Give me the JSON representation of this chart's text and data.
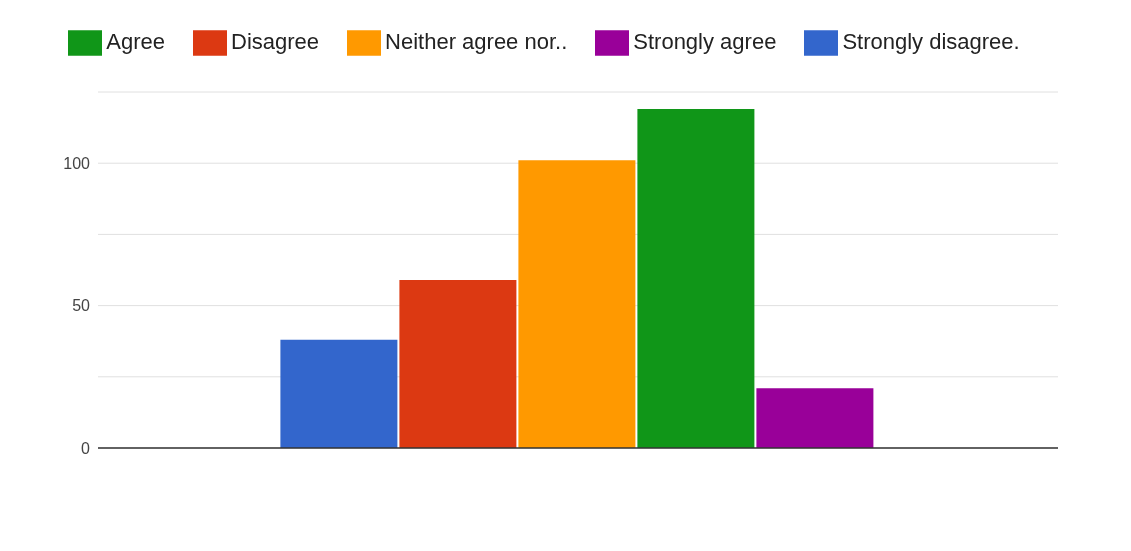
{
  "chart_data": {
    "type": "bar",
    "categories": [
      null
    ],
    "series": [
      {
        "name": "Strongly disagree.",
        "color": "#3366cc",
        "values": [
          38
        ]
      },
      {
        "name": "Disagree",
        "color": "#dc3912",
        "values": [
          59
        ]
      },
      {
        "name": "Neither agree nor..",
        "color": "#ff9900",
        "values": [
          101
        ]
      },
      {
        "name": "Agree",
        "color": "#109618",
        "values": [
          119
        ]
      },
      {
        "name": "Strongly agree",
        "color": "#990099",
        "values": [
          21
        ]
      }
    ],
    "ylim": [
      0,
      125
    ],
    "yticks": [
      0,
      {
        "value": 25,
        "label": null
      },
      50,
      {
        "value": 75,
        "label": null
      },
      100
    ],
    "grid": "y",
    "legend": "top"
  }
}
